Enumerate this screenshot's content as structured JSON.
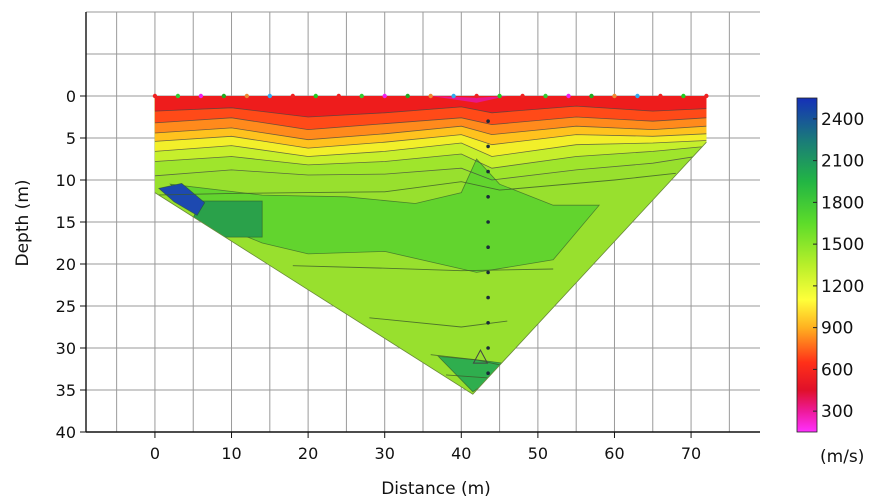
{
  "chart_data": {
    "type": "heatmap",
    "title": "",
    "xlabel": "Distance (m)",
    "ylabel": "Depth (m)",
    "xlim": [
      -9,
      79
    ],
    "ylim": [
      40,
      -10
    ],
    "y_inverted": true,
    "grid": true,
    "x_ticks": [
      0,
      10,
      20,
      30,
      40,
      50,
      60,
      70
    ],
    "y_ticks": [
      0,
      5,
      10,
      15,
      20,
      25,
      30,
      35,
      40
    ],
    "colorbar": {
      "unit_label": "(m/s)",
      "ticks": [
        2400,
        2100,
        1800,
        1500,
        1200,
        900,
        600,
        300
      ],
      "range": [
        150,
        2550
      ],
      "stops": [
        {
          "value": 2550,
          "color": "#1530b8"
        },
        {
          "value": 2250,
          "color": "#1a7a7a"
        },
        {
          "value": 1950,
          "color": "#22b544"
        },
        {
          "value": 1650,
          "color": "#5ddc2a"
        },
        {
          "value": 1350,
          "color": "#b8ef2a"
        },
        {
          "value": 1100,
          "color": "#ffff3a"
        },
        {
          "value": 900,
          "color": "#ffb020"
        },
        {
          "value": 650,
          "color": "#ff3018"
        },
        {
          "value": 450,
          "color": "#e0102a"
        },
        {
          "value": 300,
          "color": "#ee1a9a"
        },
        {
          "value": 150,
          "color": "#ff30ff"
        }
      ]
    },
    "model_outline": [
      [
        0,
        0
      ],
      [
        72,
        0
      ],
      [
        72,
        5.5
      ],
      [
        41.5,
        35.5
      ],
      [
        0,
        11.5
      ]
    ],
    "velocity_bands": [
      {
        "velocity": 350,
        "color": "#e8188a",
        "surface": [
          [
            36,
            0
          ],
          [
            42,
            0.2
          ],
          [
            46,
            0
          ],
          [
            42,
            0.8
          ]
        ]
      },
      {
        "velocity": 600,
        "color": "#ee1c1c",
        "profile": [
          [
            0,
            1.8
          ],
          [
            10,
            1.4
          ],
          [
            20,
            2.5
          ],
          [
            30,
            2.0
          ],
          [
            40,
            1.3
          ],
          [
            44,
            2.0
          ],
          [
            55,
            1.2
          ],
          [
            65,
            1.8
          ],
          [
            72,
            1.5
          ]
        ]
      },
      {
        "velocity": 750,
        "color": "#ff4a18",
        "profile": [
          [
            0,
            3.2
          ],
          [
            10,
            2.6
          ],
          [
            20,
            4.0
          ],
          [
            30,
            3.3
          ],
          [
            40,
            2.6
          ],
          [
            44,
            3.4
          ],
          [
            55,
            2.5
          ],
          [
            65,
            3.0
          ],
          [
            72,
            2.6
          ]
        ]
      },
      {
        "velocity": 900,
        "color": "#ff8a1c",
        "profile": [
          [
            0,
            4.4
          ],
          [
            10,
            3.8
          ],
          [
            20,
            5.2
          ],
          [
            30,
            4.5
          ],
          [
            40,
            3.6
          ],
          [
            44,
            4.6
          ],
          [
            55,
            3.6
          ],
          [
            65,
            4.0
          ],
          [
            72,
            3.6
          ]
        ]
      },
      {
        "velocity": 1050,
        "color": "#ffc21e",
        "profile": [
          [
            0,
            5.4
          ],
          [
            10,
            4.8
          ],
          [
            20,
            6.2
          ],
          [
            30,
            5.5
          ],
          [
            40,
            4.6
          ],
          [
            44,
            5.8
          ],
          [
            55,
            4.6
          ],
          [
            65,
            4.8
          ],
          [
            72,
            4.5
          ]
        ]
      },
      {
        "velocity": 1200,
        "color": "#f2ef2a",
        "profile": [
          [
            0,
            6.6
          ],
          [
            10,
            5.9
          ],
          [
            20,
            7.2
          ],
          [
            30,
            6.6
          ],
          [
            40,
            5.6
          ],
          [
            44,
            7.2
          ],
          [
            55,
            5.8
          ],
          [
            65,
            5.6
          ],
          [
            72,
            5.3
          ]
        ]
      },
      {
        "velocity": 1350,
        "color": "#c6ef2c",
        "profile": [
          [
            0,
            7.8
          ],
          [
            10,
            7.2
          ],
          [
            20,
            8.2
          ],
          [
            30,
            7.8
          ],
          [
            40,
            6.9
          ],
          [
            44,
            8.6
          ],
          [
            55,
            7.2
          ],
          [
            65,
            6.6
          ],
          [
            72,
            6.0
          ]
        ]
      },
      {
        "velocity": 1450,
        "color": "#9fe52c",
        "profile": [
          [
            0,
            9.5
          ],
          [
            10,
            8.8
          ],
          [
            20,
            9.4
          ],
          [
            30,
            9.3
          ],
          [
            40,
            8.6
          ],
          [
            44,
            10.0
          ],
          [
            55,
            8.8
          ],
          [
            65,
            8.0
          ],
          [
            72,
            7.0
          ]
        ]
      }
    ],
    "zones": [
      {
        "velocity": 1500,
        "color": "#98e02e",
        "region": "background_below_9m"
      },
      {
        "velocity": 1650,
        "color": "#62d42e",
        "polygon": [
          [
            2,
            10.5
          ],
          [
            14,
            11.8
          ],
          [
            25,
            12.0
          ],
          [
            34,
            12.8
          ],
          [
            40,
            11.5
          ],
          [
            42,
            7.5
          ],
          [
            45,
            10.5
          ],
          [
            52,
            13.0
          ],
          [
            58,
            13.0
          ],
          [
            52,
            19.5
          ],
          [
            42,
            21.0
          ],
          [
            30,
            18.5
          ],
          [
            20,
            18.8
          ],
          [
            14,
            17.5
          ],
          [
            6,
            14.5
          ]
        ]
      },
      {
        "velocity": 2000,
        "color": "#2aa14a",
        "polygon": [
          [
            6,
            12.5
          ],
          [
            14,
            12.5
          ],
          [
            14,
            16.8
          ],
          [
            8,
            16.8
          ],
          [
            5,
            14.5
          ]
        ]
      },
      {
        "velocity": 2400,
        "color": "#1d49b0",
        "polygon": [
          [
            0.5,
            11.0
          ],
          [
            3.5,
            10.4
          ],
          [
            6.5,
            12.7
          ],
          [
            5.5,
            14.2
          ],
          [
            2.5,
            12.6
          ]
        ]
      },
      {
        "velocity": 1900,
        "color": "#2fae4e",
        "polygon": [
          [
            37,
            31.0
          ],
          [
            43,
            31.5
          ],
          [
            47,
            32.0
          ],
          [
            41.5,
            35.2
          ]
        ]
      }
    ],
    "contours": [
      [
        [
          0,
          11.8
        ],
        [
          10,
          11.6
        ],
        [
          20,
          11.5
        ],
        [
          30,
          11.4
        ],
        [
          40,
          10.2
        ],
        [
          45,
          11.2
        ],
        [
          60,
          10.0
        ],
        [
          68,
          9.2
        ]
      ],
      [
        [
          18,
          20.2
        ],
        [
          30,
          20.5
        ],
        [
          40,
          20.8
        ],
        [
          52,
          20.6
        ]
      ],
      [
        [
          28,
          26.4
        ],
        [
          40,
          27.5
        ],
        [
          46,
          26.8
        ]
      ],
      [
        [
          36,
          30.8
        ],
        [
          42,
          31.4
        ],
        [
          46,
          32.2
        ]
      ],
      [
        [
          38,
          33.2
        ],
        [
          44,
          33.6
        ]
      ]
    ],
    "shot_x": [
      0,
      3,
      6,
      9,
      12,
      15,
      18,
      21,
      24,
      27,
      30,
      33,
      36,
      39,
      42,
      45,
      48,
      51,
      54,
      57,
      60,
      63,
      66,
      69,
      72
    ],
    "receiver_line": {
      "x": 43.5,
      "depths": [
        3,
        6,
        9,
        12,
        15,
        18,
        21,
        24,
        27,
        30,
        33
      ]
    },
    "source_marker": {
      "x": 42.5,
      "depth": 31.2
    }
  }
}
